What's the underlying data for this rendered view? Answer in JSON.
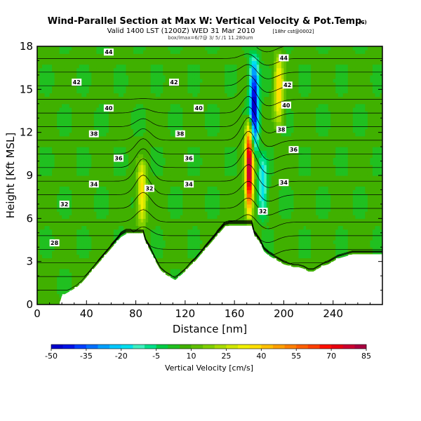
{
  "header": {
    "title": "Wind-Parallel Section at Max W: Vertical Velocity & Pot.Temp.",
    "title_units": "(C)",
    "subtitle_main": "Valid 1400 LST (1200Z) WED 31 Mar 2010",
    "subtitle_small": "[18hr cst@0002]",
    "subtitle_line2": "box/lmax=6/7@ 3/ 5/ /1 11.280um"
  },
  "chart_data": {
    "type": "heatmap",
    "title": "Wind-Parallel Section at Max W: Vertical Velocity & Pot.Temp.",
    "xlabel": "Distance [nm]",
    "ylabel": "Height [Kft MSL]",
    "xlim": [
      0,
      280
    ],
    "ylim": [
      0,
      18
    ],
    "xticks": [
      0,
      40,
      80,
      120,
      160,
      200,
      240
    ],
    "yticks": [
      0,
      3,
      6,
      9,
      12,
      15,
      18
    ],
    "grid": false,
    "terrain_profile": {
      "x": [
        0,
        18,
        20,
        24,
        28,
        32,
        36,
        40,
        44,
        48,
        52,
        56,
        60,
        64,
        68,
        72,
        76,
        80,
        84,
        86,
        88,
        92,
        96,
        100,
        104,
        108,
        112,
        116,
        120,
        124,
        128,
        132,
        136,
        140,
        144,
        148,
        152,
        156,
        160,
        164,
        168,
        172,
        174,
        176,
        180,
        184,
        188,
        192,
        196,
        200,
        204,
        208,
        212,
        216,
        220,
        224,
        228,
        232,
        236,
        240,
        244,
        248,
        252,
        256,
        260,
        264,
        268,
        272,
        276,
        280
      ],
      "height": [
        0,
        0,
        0.6,
        0.8,
        1.0,
        1.2,
        1.5,
        1.9,
        2.3,
        2.7,
        3.1,
        3.5,
        3.9,
        4.3,
        4.7,
        4.9,
        4.9,
        4.9,
        4.9,
        4.9,
        4.3,
        3.7,
        3.0,
        2.4,
        2.1,
        1.9,
        1.7,
        2.0,
        2.3,
        2.7,
        3.0,
        3.4,
        3.8,
        4.2,
        4.6,
        5.0,
        5.4,
        5.5,
        5.5,
        5.5,
        5.5,
        5.5,
        5.5,
        4.8,
        4.4,
        3.7,
        3.4,
        3.2,
        3.0,
        2.8,
        2.7,
        2.6,
        2.6,
        2.5,
        2.3,
        2.3,
        2.5,
        2.7,
        2.8,
        3.0,
        3.2,
        3.3,
        3.4,
        3.5,
        3.5,
        3.5,
        3.5,
        3.5,
        3.5,
        3.5
      ]
    },
    "vertical_velocity_features": [
      {
        "kind": "background",
        "x": [
          0,
          280
        ],
        "value": 6
      },
      {
        "kind": "updraft",
        "x_center": 85,
        "z_bottom": 5.0,
        "z_top": 10.5,
        "max": 38
      },
      {
        "kind": "updraft",
        "x_center": 172,
        "z_bottom": 5.5,
        "z_top": 13.5,
        "max": 85
      },
      {
        "kind": "downdraft",
        "x_center": 176,
        "z_bottom": 10,
        "z_top": 18,
        "min": -50
      },
      {
        "kind": "downdraft",
        "x_center": 183,
        "z_bottom": 5.5,
        "z_top": 11,
        "min": -20
      },
      {
        "kind": "updraft",
        "x_center": 196,
        "z_bottom": 12,
        "z_top": 18,
        "max": 40
      }
    ],
    "theta_contours": [
      {
        "level": 28,
        "label_x": 14,
        "label_z": 4.3
      },
      {
        "level": 32,
        "label_x": 22,
        "label_z": 7.0
      },
      {
        "level": 34,
        "label_x": 46,
        "label_z": 8.4,
        "label2_x": 123,
        "label2_z": 8.4,
        "label3_x": 200,
        "label3_z": 8.5
      },
      {
        "level": 36,
        "label_x": 66,
        "label_z": 10.2,
        "label2_x": 123,
        "label2_z": 10.2,
        "label3_x": 208,
        "label3_z": 10.8
      },
      {
        "level": 38,
        "label_x": 46,
        "label_z": 11.9,
        "label2_x": 116,
        "label2_z": 11.9,
        "label3_x": 198,
        "label3_z": 12.2
      },
      {
        "level": 40,
        "label_x": 58,
        "label_z": 13.7,
        "label2_x": 131,
        "label2_z": 13.7,
        "label3_x": 202,
        "label3_z": 13.9
      },
      {
        "level": 42,
        "label_x": 32,
        "label_z": 15.5,
        "label2_x": 111,
        "label2_z": 15.5,
        "label3_x": 203,
        "label3_z": 15.3
      },
      {
        "level": 44,
        "label_x": 58,
        "label_z": 17.6,
        "label2_x": 200,
        "label2_z": 17.2
      }
    ],
    "special_labels": [
      {
        "text": "32",
        "x": 91,
        "z": 8.1
      },
      {
        "text": "32",
        "x": 183,
        "z": 6.5
      }
    ],
    "colorbar": {
      "title": "Vertical Velocity [cm/s]",
      "min": -50,
      "max": 85,
      "step": 5,
      "tick_labels": [
        "-50",
        "-35",
        "-20",
        "-5",
        "10",
        "25",
        "40",
        "55",
        "70",
        "85"
      ],
      "colors": [
        "#0000cc",
        "#0014e6",
        "#0040ff",
        "#0070ff",
        "#00a0ff",
        "#00c8ff",
        "#00e0ee",
        "#40f0c0",
        "#00e08a",
        "#00cc44",
        "#20c020",
        "#40b000",
        "#5fbf00",
        "#80d000",
        "#a8dc00",
        "#d0e800",
        "#f0f000",
        "#ffe000",
        "#ffc000",
        "#ffa000",
        "#ff8000",
        "#ff6000",
        "#ff4000",
        "#ff1000",
        "#e80010",
        "#cc0030",
        "#a80040"
      ]
    }
  }
}
